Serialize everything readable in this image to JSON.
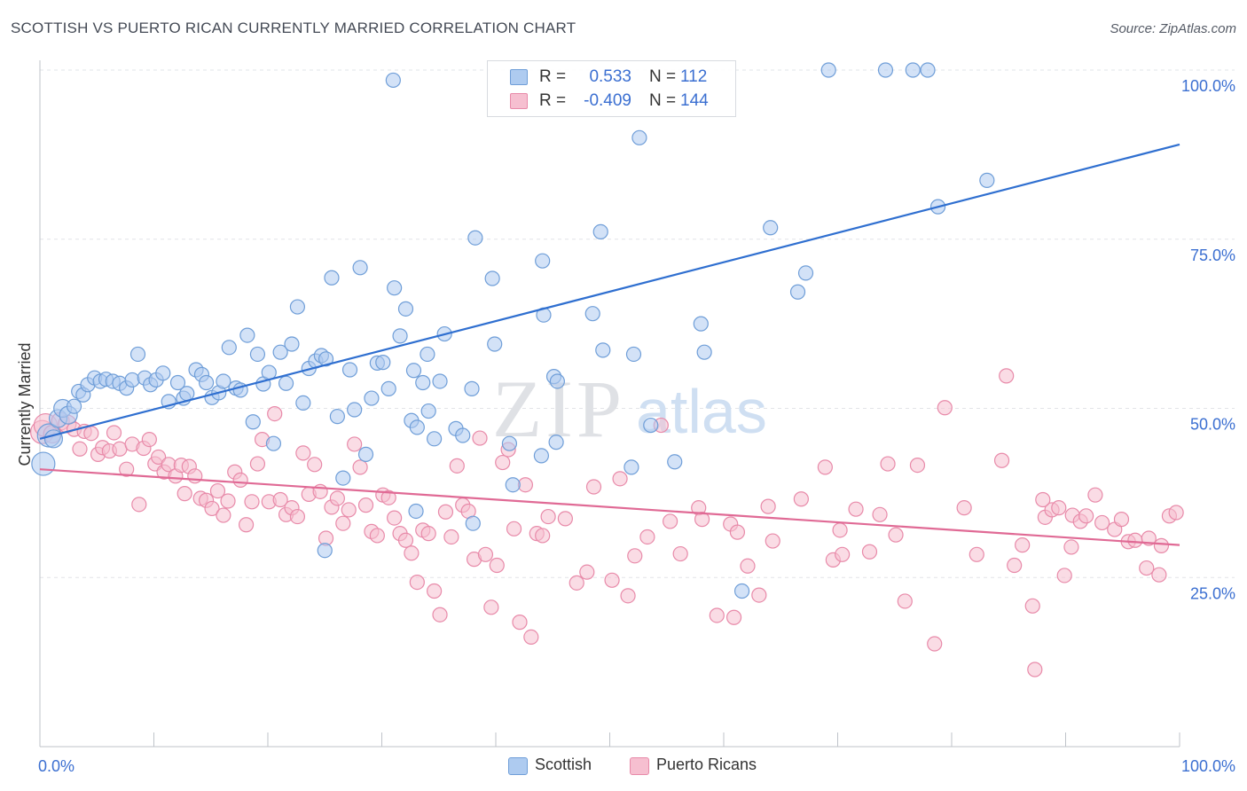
{
  "title": "SCOTTISH VS PUERTO RICAN CURRENTLY MARRIED CORRELATION CHART",
  "source": "Source: ZipAtlas.com",
  "watermark": {
    "zip": "ZIP",
    "atlas": "atlas"
  },
  "legend": {
    "r_label": "R =",
    "n_label": "N =",
    "rows": [
      {
        "r": "0.533",
        "n": "112"
      },
      {
        "r": "-0.409",
        "n": "144"
      }
    ]
  },
  "colors": {
    "blue_fill": "#aecbf0",
    "blue_stroke": "#6f9ed8",
    "blue_line": "#2f6fd0",
    "pink_fill": "#f6bfd0",
    "pink_stroke": "#e88aa9",
    "pink_line": "#e06a95",
    "axis_text": "#3b6fd1",
    "grid": "#e2e4e8"
  },
  "chart_data": {
    "type": "scatter",
    "title": "SCOTTISH VS PUERTO RICAN CURRENTLY MARRIED CORRELATION CHART",
    "xlabel": "",
    "ylabel": "Currently Married",
    "xlim": [
      0,
      100
    ],
    "ylim": [
      0,
      100
    ],
    "x_tick_labels": [
      "0.0%",
      "100.0%"
    ],
    "y_ticks": [
      25,
      50,
      75,
      100
    ],
    "y_tick_labels": [
      "25.0%",
      "50.0%",
      "75.0%",
      "100.0%"
    ],
    "grid": true,
    "legend_position": "bottom",
    "series": [
      {
        "name": "Scottish",
        "r": 0.533,
        "n": 112,
        "trend": [
          [
            0,
            45.5
          ],
          [
            100,
            89
          ]
        ],
        "points": [
          [
            0.3,
            41.8
          ],
          [
            0.8,
            46
          ],
          [
            1.2,
            45.5
          ],
          [
            1.6,
            48.5
          ],
          [
            2,
            50
          ],
          [
            2.5,
            49
          ],
          [
            3,
            50.3
          ],
          [
            3.4,
            52.5
          ],
          [
            3.8,
            52
          ],
          [
            4.2,
            53.5
          ],
          [
            4.8,
            54.5
          ],
          [
            5.3,
            54
          ],
          [
            5.8,
            54.3
          ],
          [
            6.4,
            54
          ],
          [
            7,
            53.7
          ],
          [
            7.6,
            53
          ],
          [
            8.1,
            54.2
          ],
          [
            8.6,
            58
          ],
          [
            9.2,
            54.5
          ],
          [
            9.7,
            53.5
          ],
          [
            10.2,
            54.2
          ],
          [
            10.8,
            55.2
          ],
          [
            11.3,
            51
          ],
          [
            12.1,
            53.8
          ],
          [
            12.6,
            51.5
          ],
          [
            12.9,
            52.2
          ],
          [
            13.7,
            55.7
          ],
          [
            14.2,
            55
          ],
          [
            14.6,
            53.8
          ],
          [
            15.1,
            51.6
          ],
          [
            15.7,
            52.3
          ],
          [
            16.1,
            54
          ],
          [
            16.6,
            59
          ],
          [
            17.2,
            53
          ],
          [
            17.6,
            52.7
          ],
          [
            18.2,
            60.8
          ],
          [
            18.7,
            48
          ],
          [
            19.1,
            58
          ],
          [
            19.6,
            53.6
          ],
          [
            20.1,
            55.3
          ],
          [
            20.5,
            44.8
          ],
          [
            21.1,
            58.3
          ],
          [
            21.6,
            53.7
          ],
          [
            22.1,
            59.5
          ],
          [
            22.6,
            65
          ],
          [
            23.1,
            50.8
          ],
          [
            23.6,
            55.9
          ],
          [
            24.2,
            57
          ],
          [
            24.7,
            57.8
          ],
          [
            25.1,
            57.3
          ],
          [
            25.6,
            69.3
          ],
          [
            26.1,
            48.8
          ],
          [
            26.6,
            39.7
          ],
          [
            27.2,
            55.7
          ],
          [
            27.6,
            49.8
          ],
          [
            28.1,
            70.8
          ],
          [
            28.6,
            43.2
          ],
          [
            29.1,
            51.5
          ],
          [
            29.6,
            56.7
          ],
          [
            30.1,
            56.8
          ],
          [
            30.6,
            52.9
          ],
          [
            31.1,
            67.8
          ],
          [
            31.6,
            60.7
          ],
          [
            32.1,
            64.7
          ],
          [
            32.6,
            48.2
          ],
          [
            33.1,
            47.2
          ],
          [
            33.6,
            53.8
          ],
          [
            34.1,
            49.6
          ],
          [
            34.6,
            45.5
          ],
          [
            35.1,
            54
          ],
          [
            37.9,
            52.9
          ],
          [
            38.2,
            75.2
          ],
          [
            39.7,
            69.2
          ],
          [
            39.9,
            59.5
          ],
          [
            41.2,
            44.8
          ],
          [
            41.5,
            38.7
          ],
          [
            44.1,
            71.8
          ],
          [
            44.2,
            63.8
          ],
          [
            45.1,
            54.7
          ],
          [
            45.4,
            54
          ],
          [
            49.2,
            76.1
          ],
          [
            49.4,
            58.6
          ],
          [
            51.9,
            41.3
          ],
          [
            52.1,
            58
          ],
          [
            53.6,
            47.5
          ],
          [
            55.7,
            42.1
          ],
          [
            58,
            62.5
          ],
          [
            58.3,
            58.3
          ],
          [
            61.6,
            23
          ],
          [
            64.1,
            76.7
          ],
          [
            66.5,
            67.2
          ],
          [
            78.8,
            79.8
          ],
          [
            83.1,
            83.7
          ],
          [
            67.2,
            70
          ],
          [
            52.6,
            90
          ],
          [
            77.9,
            100
          ],
          [
            76.6,
            100
          ],
          [
            74.2,
            100
          ],
          [
            69.2,
            100
          ],
          [
            31,
            98.5
          ],
          [
            33,
            34.8
          ],
          [
            25,
            29
          ],
          [
            38,
            33
          ],
          [
            44,
            43
          ],
          [
            36.5,
            47
          ],
          [
            48.5,
            64
          ],
          [
            35.5,
            61
          ],
          [
            34,
            58
          ],
          [
            32.8,
            55.6
          ],
          [
            37.1,
            46
          ],
          [
            45.3,
            45
          ]
        ]
      },
      {
        "name": "Puerto Ricans",
        "r": -0.409,
        "n": 144,
        "trend": [
          [
            0,
            41
          ],
          [
            100,
            29.8
          ]
        ],
        "points": [
          [
            0.2,
            46.5
          ],
          [
            0.5,
            47.5
          ],
          [
            1.1,
            46.2
          ],
          [
            1.8,
            48.1
          ],
          [
            2.4,
            47.7
          ],
          [
            3,
            46.9
          ],
          [
            3.5,
            44
          ],
          [
            3.9,
            46.6
          ],
          [
            4.5,
            46.3
          ],
          [
            5.1,
            43.2
          ],
          [
            5.5,
            44.2
          ],
          [
            6.1,
            43.7
          ],
          [
            6.5,
            46.4
          ],
          [
            7,
            44
          ],
          [
            7.6,
            41
          ],
          [
            8.1,
            44.7
          ],
          [
            8.7,
            35.8
          ],
          [
            9.1,
            44.1
          ],
          [
            9.6,
            45.4
          ],
          [
            10.1,
            41.8
          ],
          [
            10.4,
            42.8
          ],
          [
            10.9,
            40.6
          ],
          [
            11.3,
            41.7
          ],
          [
            11.9,
            40
          ],
          [
            12.4,
            41.6
          ],
          [
            12.7,
            37.4
          ],
          [
            13.1,
            41.4
          ],
          [
            13.6,
            40
          ],
          [
            14.1,
            36.7
          ],
          [
            14.6,
            36.4
          ],
          [
            15.1,
            35.2
          ],
          [
            15.6,
            37.8
          ],
          [
            16.1,
            34.2
          ],
          [
            16.5,
            36.3
          ],
          [
            17.1,
            40.6
          ],
          [
            17.6,
            39.4
          ],
          [
            18.1,
            32.8
          ],
          [
            18.6,
            36.2
          ],
          [
            19.1,
            41.8
          ],
          [
            19.5,
            45.4
          ],
          [
            20.1,
            36.2
          ],
          [
            20.6,
            49.2
          ],
          [
            21.1,
            36.5
          ],
          [
            21.6,
            34.3
          ],
          [
            22.1,
            35.3
          ],
          [
            22.6,
            34
          ],
          [
            23.1,
            43.4
          ],
          [
            23.6,
            37.3
          ],
          [
            24.1,
            41.7
          ],
          [
            24.6,
            37.7
          ],
          [
            25.1,
            30.8
          ],
          [
            25.6,
            35.4
          ],
          [
            26.1,
            36.7
          ],
          [
            26.6,
            33
          ],
          [
            27.1,
            35
          ],
          [
            27.6,
            44.7
          ],
          [
            28.1,
            41.3
          ],
          [
            28.6,
            35.7
          ],
          [
            29.1,
            31.8
          ],
          [
            29.6,
            31.2
          ],
          [
            30.1,
            37.2
          ],
          [
            30.6,
            36.8
          ],
          [
            31.1,
            33.8
          ],
          [
            31.6,
            31.5
          ],
          [
            32.1,
            30.5
          ],
          [
            32.6,
            28.6
          ],
          [
            33.1,
            24.3
          ],
          [
            33.6,
            32
          ],
          [
            34.1,
            31.5
          ],
          [
            34.6,
            23
          ],
          [
            35.1,
            19.5
          ],
          [
            35.6,
            34.7
          ],
          [
            36.1,
            31
          ],
          [
            36.6,
            41.5
          ],
          [
            37.1,
            35.7
          ],
          [
            37.6,
            34.8
          ],
          [
            38.1,
            27.7
          ],
          [
            38.6,
            45.6
          ],
          [
            39.1,
            28.4
          ],
          [
            39.6,
            20.6
          ],
          [
            40.1,
            26.8
          ],
          [
            40.6,
            42
          ],
          [
            41.1,
            43.9
          ],
          [
            41.6,
            32.2
          ],
          [
            42.1,
            18.4
          ],
          [
            42.6,
            38.7
          ],
          [
            43.1,
            16.2
          ],
          [
            43.6,
            31.5
          ],
          [
            44.1,
            31.2
          ],
          [
            44.6,
            34
          ],
          [
            46.1,
            33.7
          ],
          [
            47.1,
            24.2
          ],
          [
            48,
            25.8
          ],
          [
            48.6,
            38.4
          ],
          [
            50.2,
            24.6
          ],
          [
            51.6,
            22.3
          ],
          [
            52.2,
            28.2
          ],
          [
            53.3,
            31
          ],
          [
            55.3,
            33.3
          ],
          [
            56.2,
            28.5
          ],
          [
            57.8,
            35.3
          ],
          [
            58.1,
            33.6
          ],
          [
            59.4,
            19.4
          ],
          [
            60.6,
            32.9
          ],
          [
            61.2,
            31.7
          ],
          [
            62.1,
            26.7
          ],
          [
            63.1,
            22.4
          ],
          [
            63.9,
            35.5
          ],
          [
            64.3,
            30.4
          ],
          [
            66.8,
            36.6
          ],
          [
            68.9,
            41.3
          ],
          [
            69.6,
            27.6
          ],
          [
            70.2,
            32
          ],
          [
            71.6,
            35.1
          ],
          [
            72.8,
            28.8
          ],
          [
            73.7,
            34.3
          ],
          [
            74.4,
            41.8
          ],
          [
            75.1,
            31.3
          ],
          [
            75.9,
            21.5
          ],
          [
            77,
            41.6
          ],
          [
            78.5,
            15.2
          ],
          [
            79.4,
            50.1
          ],
          [
            81.1,
            35.3
          ],
          [
            82.2,
            28.4
          ],
          [
            84.4,
            42.3
          ],
          [
            85.5,
            26.8
          ],
          [
            86.2,
            29.8
          ],
          [
            87.1,
            20.8
          ],
          [
            87.3,
            11.4
          ],
          [
            88.2,
            33.9
          ],
          [
            88.8,
            35
          ],
          [
            89.4,
            35.3
          ],
          [
            89.9,
            25.3
          ],
          [
            90.6,
            34.2
          ],
          [
            91.3,
            33.3
          ],
          [
            91.8,
            34.1
          ],
          [
            92.6,
            37.2
          ],
          [
            93.2,
            33.1
          ],
          [
            94.3,
            32.1
          ],
          [
            95.5,
            30.3
          ],
          [
            96.1,
            30.5
          ],
          [
            97.1,
            26.4
          ],
          [
            98.2,
            25.4
          ],
          [
            98.4,
            29.7
          ],
          [
            99.1,
            34.1
          ],
          [
            99.7,
            34.6
          ],
          [
            97.3,
            30.8
          ],
          [
            94.9,
            33.6
          ],
          [
            88,
            36.5
          ],
          [
            54.5,
            47.5
          ],
          [
            50.9,
            39.6
          ],
          [
            60.9,
            19.1
          ],
          [
            70.4,
            28.4
          ],
          [
            84.8,
            54.8
          ],
          [
            90.5,
            29.5
          ]
        ]
      }
    ]
  },
  "bottom_legend": [
    {
      "label": "Scottish"
    },
    {
      "label": "Puerto Ricans"
    }
  ]
}
